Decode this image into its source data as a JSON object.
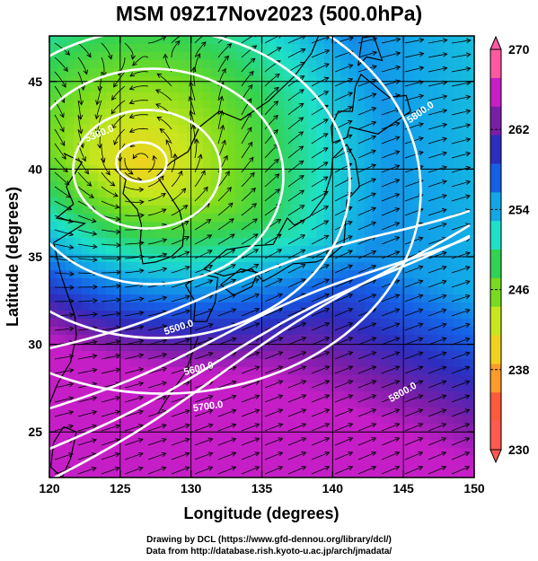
{
  "title": "MSM 09Z17Nov2023 (500.0hPa)",
  "credit_line1": "Drawing by DCL (https://www.gfd-dennou.org/library/dcl/)",
  "credit_line2": "Data from http://database.rish.kyoto-u.ac.jp/arch/jmadata/",
  "map": {
    "xlabel": "Longitude (degrees)",
    "ylabel": "Latitude  (degrees)",
    "xlim": [
      120,
      150
    ],
    "ylim": [
      22.4,
      47.6
    ],
    "xticks": [
      120,
      125,
      130,
      135,
      140,
      145,
      150
    ],
    "yticks": [
      25,
      30,
      35,
      40,
      45
    ],
    "low_center": {
      "lon": 126.5,
      "lat": 40.4
    }
  },
  "colorbar": {
    "min": 230,
    "max": 270,
    "tick_labels": [
      270,
      262,
      254,
      246,
      238,
      230
    ],
    "colors": [
      "#ff5aa0",
      "#c81ec8",
      "#7a1ea8",
      "#2d2dbe",
      "#1560e6",
      "#12a8e8",
      "#1ee1c8",
      "#32d252",
      "#78dc1e",
      "#c8e61e",
      "#f0d21e",
      "#ff9b28",
      "#ff5a3c",
      "#ff5a50"
    ]
  },
  "contour_labels": [
    {
      "text": "5300.0"
    },
    {
      "text": "5500.0"
    },
    {
      "text": "5600.0"
    },
    {
      "text": "5700.0"
    },
    {
      "text": "5800.0"
    },
    {
      "text": "5800.0"
    }
  ],
  "contours": [
    5300,
    5400,
    5500,
    5600,
    5700,
    5800
  ]
}
